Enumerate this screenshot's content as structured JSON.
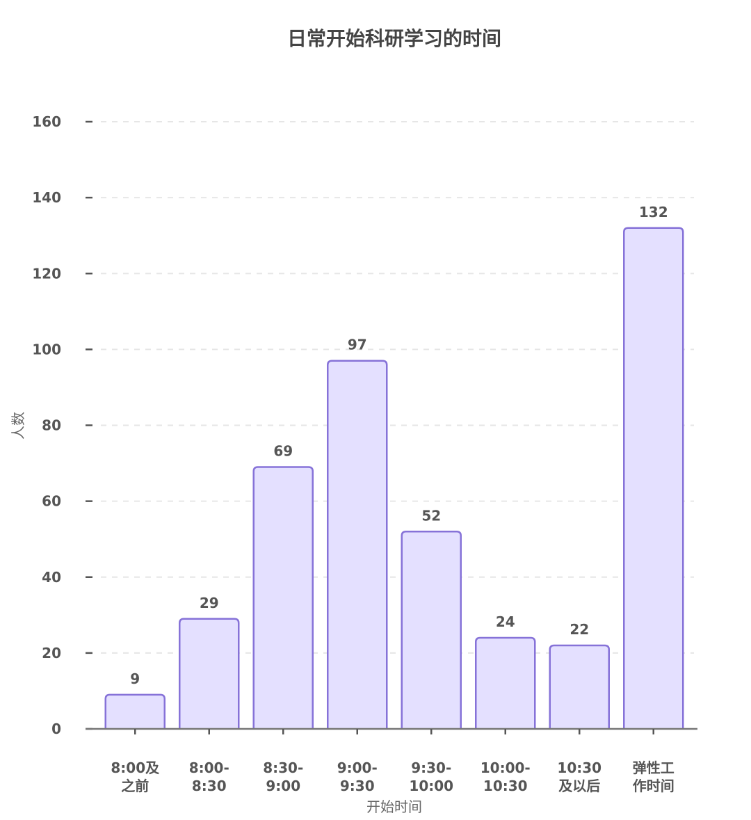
{
  "chart_data": {
    "type": "bar",
    "title": "日常开始科研学习的时间",
    "xlabel": "开始时间",
    "ylabel": "人数",
    "categories": [
      [
        "8:00及",
        "之前"
      ],
      [
        "8:00-",
        "8:30"
      ],
      [
        "8:30-",
        "9:00"
      ],
      [
        "9:00-",
        "9:30"
      ],
      [
        "9:30-",
        "10:00"
      ],
      [
        "10:00-",
        "10:30"
      ],
      [
        "10:30",
        "及以后"
      ],
      [
        "弹性工",
        "作时间"
      ]
    ],
    "values": [
      9,
      29,
      69,
      97,
      52,
      24,
      22,
      132
    ],
    "ylim": [
      0,
      160
    ],
    "yticks": [
      0,
      20,
      40,
      60,
      80,
      100,
      120,
      140,
      160
    ],
    "grid": true,
    "legend": "none",
    "colors": {
      "bar_fill": "#e4e0ff",
      "bar_stroke": "#8672d8",
      "grid": "#e6e6e6",
      "axis": "#555555",
      "text": "#555555"
    }
  }
}
